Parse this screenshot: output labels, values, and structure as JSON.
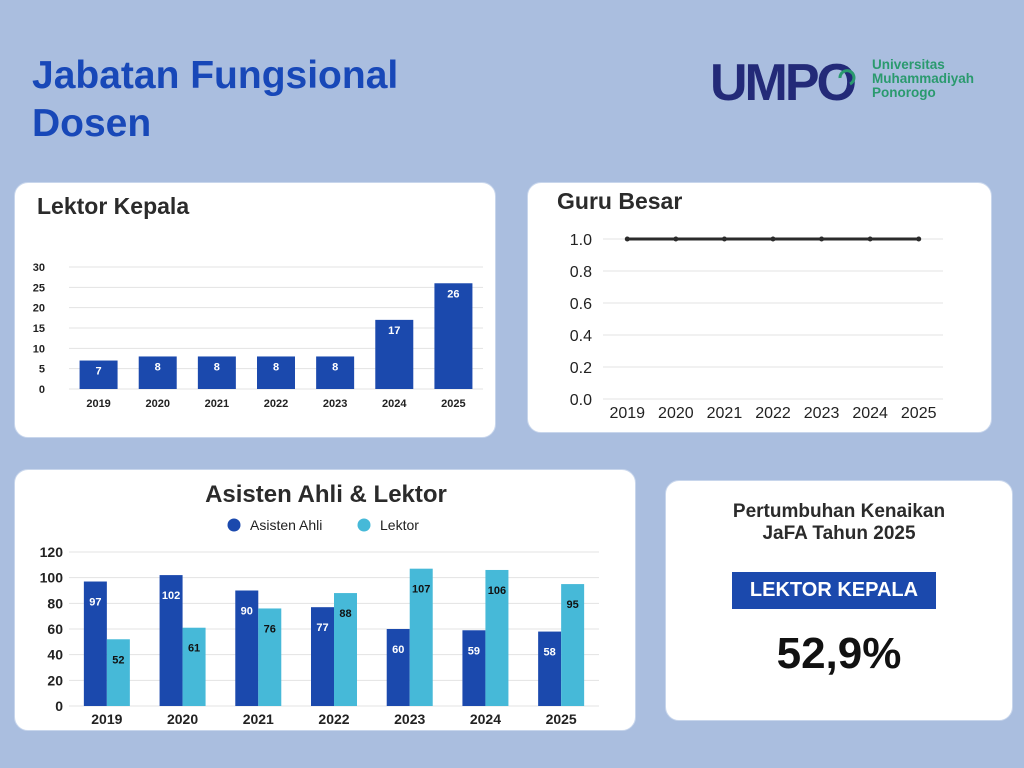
{
  "page": {
    "title_line1": "Jabatan Fungsional",
    "title_line2": "Dosen"
  },
  "logo": {
    "mark": "UMPO",
    "line1": "Universitas",
    "line2": "Muhammadiyah",
    "line3": "Ponorogo"
  },
  "colors": {
    "background": "#aabedf",
    "dark_blue": "#1b49ad",
    "light_blue": "#46b9d8",
    "title_blue": "#1848b8",
    "logo_navy": "#232a78",
    "logo_green": "#2a9a6e"
  },
  "summary": {
    "line1": "Pertumbuhan Kenaikan",
    "line2": "JaFA Tahun  2025",
    "badge": "LEKTOR KEPALA",
    "value": "52,9%"
  },
  "chart_data": [
    {
      "type": "bar",
      "title": "Lektor Kepala",
      "categories": [
        "2019",
        "2020",
        "2021",
        "2022",
        "2023",
        "2024",
        "2025"
      ],
      "values": [
        7,
        8,
        8,
        8,
        8,
        17,
        26
      ],
      "ylim": [
        0,
        30
      ],
      "yticks": [
        0,
        5,
        10,
        15,
        20,
        25,
        30
      ],
      "grid": true,
      "color": "#1b49ad"
    },
    {
      "type": "line",
      "title": "Guru Besar",
      "x": [
        "2019",
        "2020",
        "2021",
        "2022",
        "2023",
        "2024",
        "2025"
      ],
      "values": [
        1.0,
        1.0,
        1.0,
        1.0,
        1.0,
        1.0,
        1.0
      ],
      "ylim": [
        0,
        1.0
      ],
      "yticks": [
        "0.0",
        "0.2",
        "0.4",
        "0.6",
        "0.8",
        "1.0"
      ],
      "grid": true,
      "color": "#2b2b2b"
    },
    {
      "type": "bar",
      "title": "Asisten Ahli & Lektor",
      "categories": [
        "2019",
        "2020",
        "2021",
        "2022",
        "2023",
        "2024",
        "2025"
      ],
      "series": [
        {
          "name": "Asisten Ahli",
          "values": [
            97,
            102,
            90,
            77,
            60,
            59,
            58
          ],
          "color": "#1b49ad"
        },
        {
          "name": "Lektor",
          "values": [
            52,
            61,
            76,
            88,
            107,
            106,
            95
          ],
          "color": "#46b9d8"
        }
      ],
      "ylim": [
        0,
        120
      ],
      "yticks": [
        0,
        20,
        40,
        60,
        80,
        100,
        120
      ],
      "legend": "top-center",
      "grid": true
    }
  ]
}
